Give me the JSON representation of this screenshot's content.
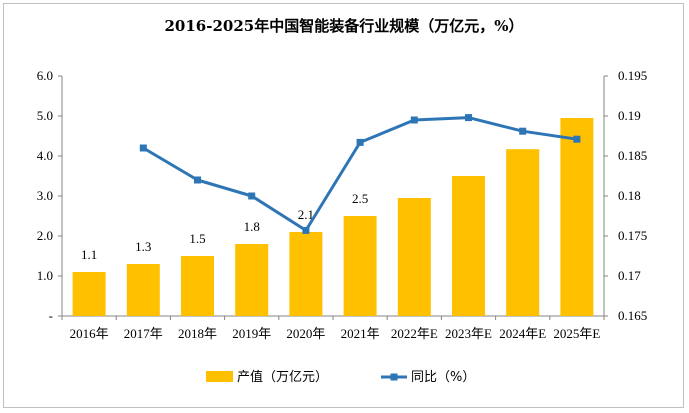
{
  "chart_data": {
    "type": "bar",
    "title": "2016-2025年中国智能装备行业规模（万亿元，%）",
    "categories": [
      "2016年",
      "2017年",
      "2018年",
      "2019年",
      "2020年",
      "2021年",
      "2022年E",
      "2023年E",
      "2024年E",
      "2025年E"
    ],
    "series": [
      {
        "name": "产值（万亿元）",
        "type": "bar",
        "axis": "left",
        "color": "#FFC000",
        "values": [
          1.1,
          1.3,
          1.5,
          1.8,
          2.1,
          2.5,
          2.95,
          3.5,
          4.17,
          4.95
        ],
        "data_labels": [
          "1.1",
          "1.3",
          "1.5",
          "1.8",
          "2.1",
          "2.5",
          null,
          null,
          null,
          null
        ]
      },
      {
        "name": "同比（%）",
        "type": "line",
        "axis": "right",
        "color": "#2E75B6",
        "values": [
          null,
          0.186,
          0.182,
          0.18,
          0.1757,
          0.1867,
          0.1895,
          0.1898,
          0.1881,
          0.1871
        ]
      }
    ],
    "y_left": {
      "ylim": [
        0,
        6
      ],
      "ticks": [
        "-",
        "1.0",
        "2.0",
        "3.0",
        "4.0",
        "5.0",
        "6.0"
      ]
    },
    "y_right": {
      "ylim": [
        0.165,
        0.195
      ],
      "ticks": [
        "0.165",
        "0.17",
        "0.175",
        "0.18",
        "0.185",
        "0.19",
        "0.195"
      ]
    },
    "grid": false,
    "legend": "bottom"
  }
}
